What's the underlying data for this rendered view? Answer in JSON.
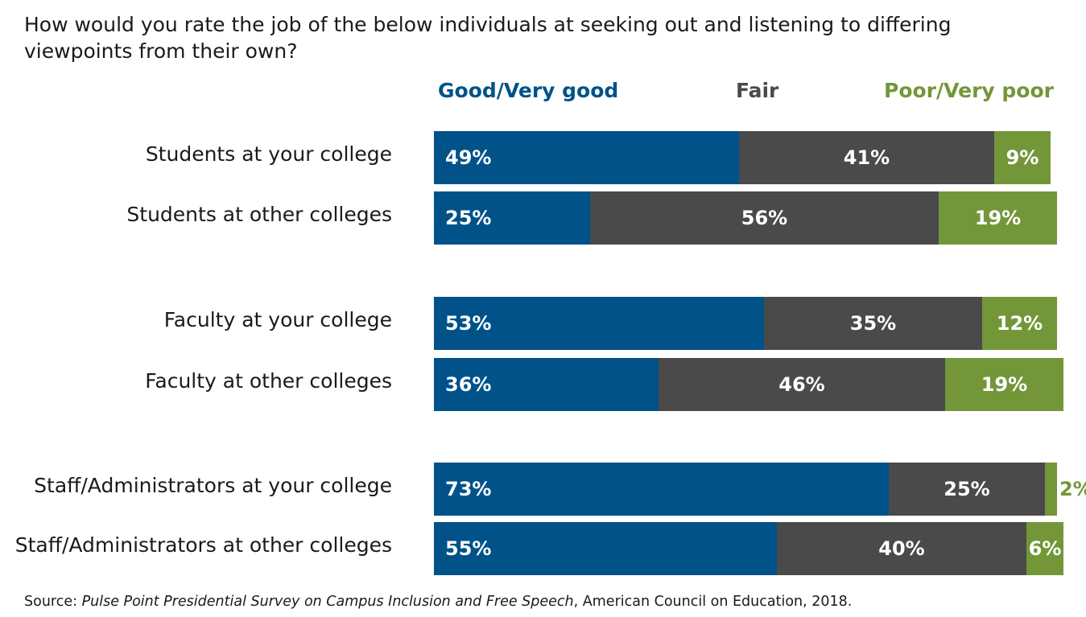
{
  "title": "How would you rate the job of the below individuals at seeking out and listening to differing viewpoints from their own?",
  "colors": {
    "good": "#005289",
    "fair": "#4a4a4a",
    "poor": "#739639"
  },
  "legend": {
    "good": "Good/Very good",
    "fair": "Fair",
    "poor": "Poor/Very poor"
  },
  "source": {
    "prefix": "Source: ",
    "italic": "Pulse Point Presidential Survey on Campus Inclusion and Free Speech",
    "suffix": ", American Council on Education, 2018."
  },
  "chart_data": {
    "type": "bar",
    "orientation": "horizontal",
    "stacked": true,
    "title": "How would you rate the job of the below individuals at seeking out and listening to differing viewpoints from their own?",
    "categories": [
      "Students at your college",
      "Students at other colleges",
      "Faculty at your college",
      "Faculty at other colleges",
      "Staff/Administrators at your college",
      "Staff/Administrators at other colleges"
    ],
    "series": [
      {
        "name": "Good/Very good",
        "values": [
          49,
          25,
          53,
          36,
          73,
          55
        ]
      },
      {
        "name": "Fair",
        "values": [
          41,
          56,
          35,
          46,
          25,
          40
        ]
      },
      {
        "name": "Poor/Very poor",
        "values": [
          9,
          19,
          12,
          19,
          2,
          6
        ]
      }
    ],
    "data_labels": [
      [
        "49%",
        "41%",
        "9%"
      ],
      [
        "25%",
        "56%",
        "19%"
      ],
      [
        "53%",
        "35%",
        "12%"
      ],
      [
        "36%",
        "46%",
        "19%"
      ],
      [
        "73%",
        "25%",
        "2%"
      ],
      [
        "55%",
        "40%",
        "6%"
      ]
    ],
    "xlim": [
      0,
      100
    ],
    "legend_position": "top",
    "grid": false
  }
}
